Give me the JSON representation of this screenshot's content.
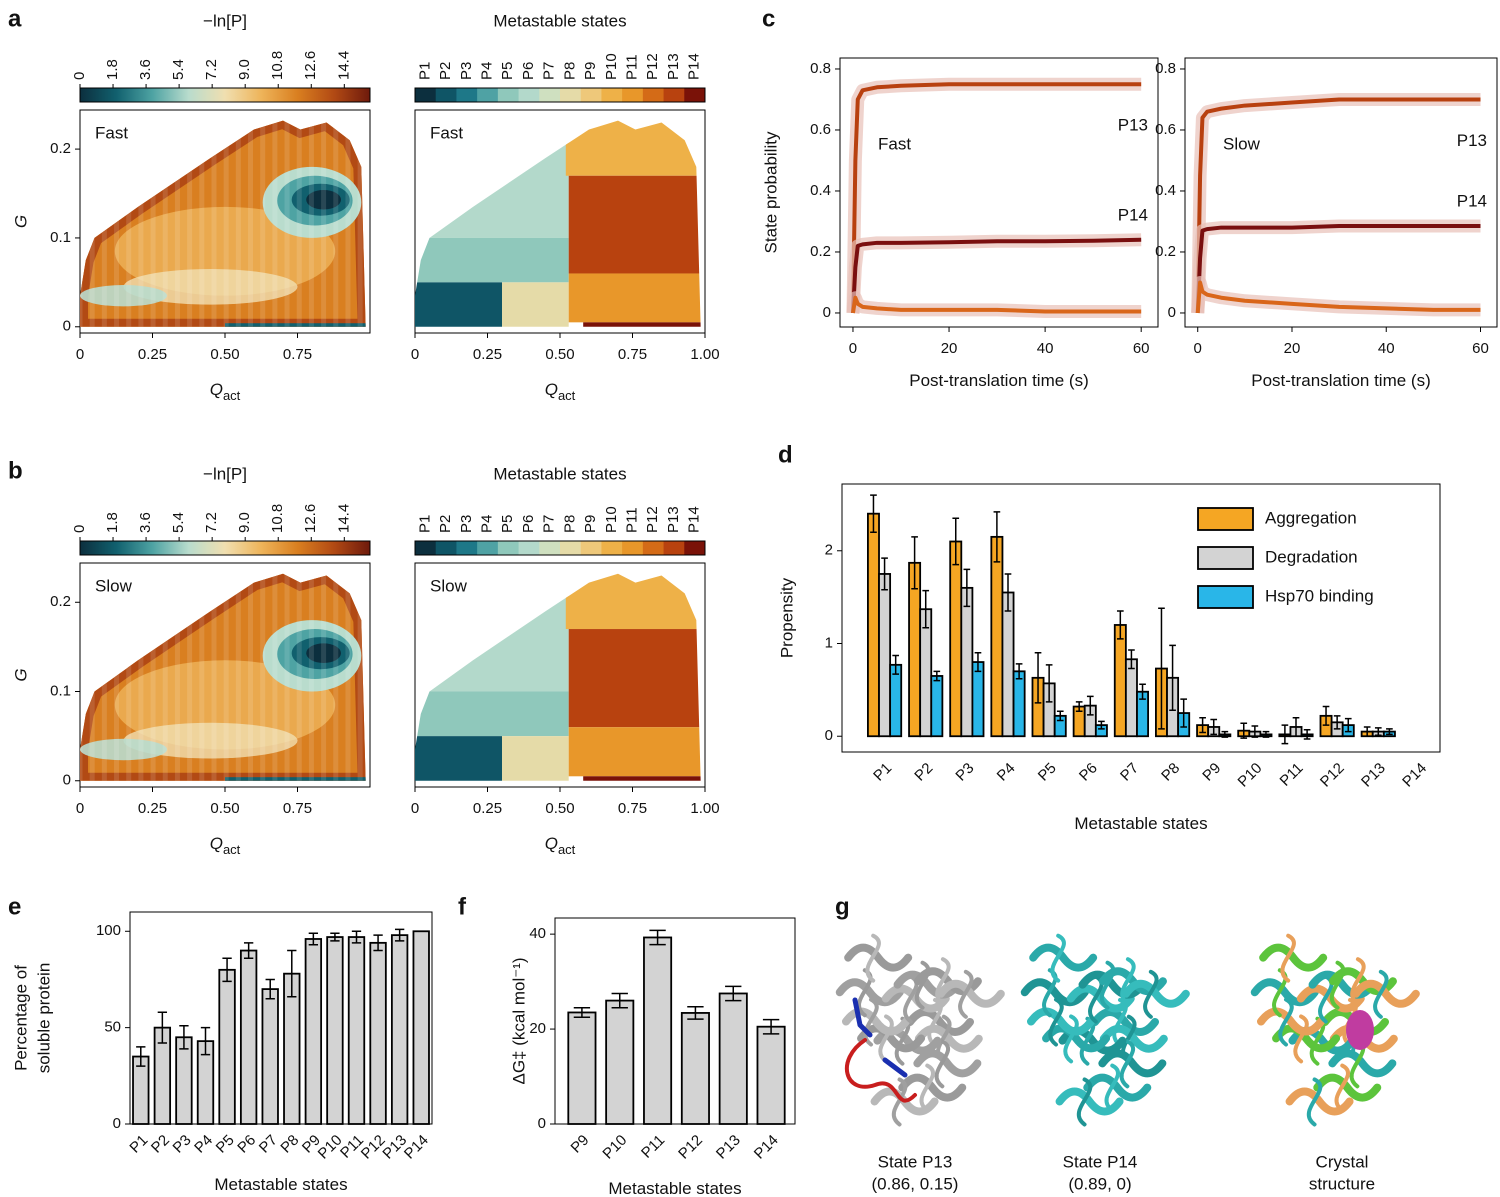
{
  "chart_data": [
    {
      "type": "heatmap",
      "panel": "a",
      "title": "−ln[P]",
      "colorbar_lim": [
        0,
        15.8
      ],
      "colorbar_ticks": [
        0,
        1.8,
        3.6,
        5.4,
        7.2,
        {
          "value": 9,
          "label": "9.0"
        },
        10.8,
        12.6,
        14.4
      ],
      "colormap": [
        "#0c2f3e",
        "#11606e",
        "#4ea3a3",
        "#b9dccd",
        "#f0dfb0",
        "#eeb45a",
        "#d97f20",
        "#b24a14",
        "#6e1a0c"
      ],
      "annotation": "Fast",
      "xlim": [
        0,
        1
      ],
      "xticks": [
        0,
        0.25,
        {
          "value": 0.5,
          "label": "0.50"
        },
        0.75
      ],
      "ylim": [
        -0.007,
        0.244
      ],
      "yticks": [
        0,
        0.1,
        0.2
      ],
      "xlabel": "Q",
      "xlabel_sub": "act",
      "ylabel": "G"
    },
    {
      "type": "statemap",
      "title": "Metastable states",
      "states": [
        "P1",
        "P2",
        "P3",
        "P4",
        "P5",
        "P6",
        "P7",
        "P8",
        "P9",
        "P10",
        "P11",
        "P12",
        "P13",
        "P14"
      ],
      "state_colors": [
        "#0c2f3e",
        "#0f5566",
        "#1e7888",
        "#4fa2a4",
        "#8fc8bb",
        "#b3d9cb",
        "#cfe0c0",
        "#e5dba8",
        "#eec87a",
        "#eeb148",
        "#e8972a",
        "#d46b17",
        "#b8420f",
        "#7a1208"
      ],
      "label_colors": [
        "#000000",
        "#000000",
        "#000000",
        "#000000",
        "#000000",
        "#000000",
        "#000000",
        "#000000",
        "#000000",
        "#000000",
        "#000000",
        "#000000",
        "#e02020",
        "#1e8c45"
      ],
      "annotation": "Fast",
      "xlim": [
        0,
        1
      ],
      "ylim": [
        -0.007,
        0.244
      ],
      "xticks": [
        0,
        0.25,
        {
          "value": 0.5,
          "label": "0.50"
        },
        0.75,
        {
          "value": 1,
          "label": "1.00"
        }
      ],
      "xlabel": "Q",
      "xlabel_sub": "act"
    },
    {
      "type": "heatmap",
      "panel": "b",
      "title": "−ln[P]",
      "colorbar_lim": [
        0,
        15.8
      ],
      "colorbar_ticks": [
        0,
        1.8,
        3.6,
        5.4,
        7.2,
        {
          "value": 9,
          "label": "9.0"
        },
        10.8,
        12.6,
        14.4
      ],
      "colormap": [
        "#0c2f3e",
        "#11606e",
        "#4ea3a3",
        "#b9dccd",
        "#f0dfb0",
        "#eeb45a",
        "#d97f20",
        "#b24a14",
        "#6e1a0c"
      ],
      "annotation": "Slow",
      "xlim": [
        0,
        1
      ],
      "xticks": [
        0,
        0.25,
        {
          "value": 0.5,
          "label": "0.50"
        },
        0.75
      ],
      "ylim": [
        -0.007,
        0.244
      ],
      "yticks": [
        0,
        0.1,
        0.2
      ],
      "xlabel": "Q",
      "xlabel_sub": "act",
      "ylabel": "G"
    },
    {
      "type": "statemap",
      "title": "Metastable states",
      "states": [
        "P1",
        "P2",
        "P3",
        "P4",
        "P5",
        "P6",
        "P7",
        "P8",
        "P9",
        "P10",
        "P11",
        "P12",
        "P13",
        "P14"
      ],
      "state_colors": [
        "#0c2f3e",
        "#0f5566",
        "#1e7888",
        "#4fa2a4",
        "#8fc8bb",
        "#b3d9cb",
        "#cfe0c0",
        "#e5dba8",
        "#eec87a",
        "#eeb148",
        "#e8972a",
        "#d46b17",
        "#b8420f",
        "#7a1208"
      ],
      "label_colors": [
        "#000000",
        "#000000",
        "#000000",
        "#000000",
        "#000000",
        "#000000",
        "#000000",
        "#000000",
        "#000000",
        "#000000",
        "#000000",
        "#000000",
        "#e02020",
        "#1e8c45"
      ],
      "annotation": "Slow",
      "xlim": [
        0,
        1
      ],
      "ylim": [
        -0.007,
        0.244
      ],
      "xticks": [
        0,
        0.25,
        {
          "value": 0.5,
          "label": "0.50"
        },
        0.75,
        {
          "value": 1,
          "label": "1.00"
        }
      ],
      "xlabel": "Q",
      "xlabel_sub": "act"
    },
    {
      "type": "line",
      "panel": "c",
      "annotation": "Fast",
      "x": [
        0,
        0.5,
        1,
        2,
        5,
        10,
        20,
        30,
        40,
        50,
        60
      ],
      "series": [
        {
          "name": "P13",
          "color": "#b8400f",
          "label_color": "#e02020",
          "values": [
            0,
            0.5,
            0.7,
            0.73,
            0.74,
            0.745,
            0.75,
            0.75,
            0.75,
            0.75,
            0.75
          ]
        },
        {
          "name": "P14",
          "color": "#7a0f0f",
          "label_color": "#1e8c45",
          "values": [
            0,
            0.15,
            0.22,
            0.225,
            0.23,
            0.23,
            0.232,
            0.235,
            0.235,
            0.237,
            0.24
          ]
        },
        {
          "color": "#d9661a",
          "values": [
            0,
            0.05,
            0.03,
            0.02,
            0.015,
            0.01,
            0.01,
            0.01,
            0.005,
            0.005,
            0.005
          ]
        }
      ],
      "band_color": "#e8c0b8",
      "xlim": [
        -2.7,
        63.5
      ],
      "ylim": [
        -0.046,
        0.836
      ],
      "xticks": [
        0,
        20,
        40,
        60
      ],
      "yticks": [
        0,
        0.2,
        0.4,
        0.6,
        0.8
      ],
      "xlabel": "Post-translation time (s)",
      "ylabel": "State probability"
    },
    {
      "type": "line",
      "annotation": "Slow",
      "x": [
        0,
        0.5,
        1,
        2,
        5,
        10,
        20,
        30,
        40,
        50,
        60
      ],
      "series": [
        {
          "name": "P13",
          "color": "#b8400f",
          "label_color": "#e02020",
          "values": [
            0,
            0.45,
            0.64,
            0.66,
            0.67,
            0.68,
            0.69,
            0.7,
            0.7,
            0.7,
            0.7
          ]
        },
        {
          "name": "P14",
          "color": "#7a0f0f",
          "label_color": "#1e8c45",
          "values": [
            0,
            0.18,
            0.27,
            0.275,
            0.28,
            0.28,
            0.28,
            0.285,
            0.285,
            0.285,
            0.285
          ]
        },
        {
          "color": "#d9661a",
          "values": [
            0,
            0.1,
            0.07,
            0.06,
            0.05,
            0.04,
            0.03,
            0.02,
            0.015,
            0.01,
            0.01
          ]
        }
      ],
      "band_color": "#e8c0b8",
      "xlim": [
        -2.7,
        63.5
      ],
      "ylim": [
        -0.046,
        0.836
      ],
      "xticks": [
        0,
        20,
        40,
        60
      ],
      "yticks": [
        0,
        0.2,
        0.4,
        0.6,
        0.8
      ],
      "xlabel": "Post-translation time (s)"
    },
    {
      "type": "bar",
      "panel": "d",
      "categories": [
        "P1",
        "P2",
        "P3",
        "P4",
        "P5",
        "P6",
        "P7",
        "P8",
        "P9",
        "P10",
        "P11",
        "P12",
        "P13",
        "P14"
      ],
      "label_colors": [
        "#000000",
        "#000000",
        "#000000",
        "#000000",
        "#000000",
        "#000000",
        "#000000",
        "#000000",
        "#000000",
        "#000000",
        "#000000",
        "#000000",
        "#e02020",
        "#1e8c45"
      ],
      "series": [
        {
          "name": "Aggregation",
          "color": "#f5a623",
          "values": [
            2.4,
            1.87,
            2.1,
            2.15,
            0.63,
            0.32,
            1.2,
            0.73,
            0.12,
            0.06,
            0.02,
            0.22,
            0.05,
            0
          ],
          "errors": [
            0.2,
            0.28,
            0.25,
            0.27,
            0.27,
            0.05,
            0.15,
            0.65,
            0.08,
            0.08,
            0.1,
            0.1,
            0.05,
            0
          ]
        },
        {
          "name": "Degradation",
          "color": "#d3d3d3",
          "values": [
            1.75,
            1.37,
            1.6,
            1.55,
            0.57,
            0.33,
            0.83,
            0.63,
            0.1,
            0.05,
            0.1,
            0.15,
            0.05,
            0
          ],
          "errors": [
            0.17,
            0.2,
            0.2,
            0.2,
            0.2,
            0.1,
            0.1,
            0.35,
            0.08,
            0.06,
            0.1,
            0.07,
            0.04,
            0
          ]
        },
        {
          "name": "Hsp70 binding",
          "color": "#29b6e8",
          "values": [
            0.77,
            0.65,
            0.8,
            0.7,
            0.22,
            0.12,
            0.48,
            0.25,
            0.02,
            0.02,
            0.02,
            0.12,
            0.05,
            0
          ],
          "errors": [
            0.1,
            0.05,
            0.1,
            0.08,
            0.05,
            0.04,
            0.08,
            0.15,
            0.03,
            0.03,
            0.05,
            0.07,
            0.03,
            0
          ]
        }
      ],
      "ylim": [
        -0.17,
        2.72
      ],
      "yticks": [
        0,
        1,
        2
      ],
      "xlabel": "Metastable states",
      "ylabel": "Propensity",
      "legend": "top-right"
    },
    {
      "type": "bar",
      "panel": "e",
      "categories": [
        "P1",
        "P2",
        "P3",
        "P4",
        "P5",
        "P6",
        "P7",
        "P8",
        "P9",
        "P10",
        "P11",
        "P12",
        "P13",
        "P14"
      ],
      "label_colors": [
        "#000000",
        "#000000",
        "#000000",
        "#000000",
        "#000000",
        "#000000",
        "#000000",
        "#000000",
        "#000000",
        "#000000",
        "#000000",
        "#000000",
        "#e02020",
        "#1e8c45"
      ],
      "color": "#d3d3d3",
      "values": [
        35,
        50,
        45,
        43,
        80,
        90,
        70,
        78,
        96,
        97,
        97,
        94,
        98,
        100
      ],
      "errors": [
        5,
        8,
        6,
        7,
        6,
        4,
        5,
        12,
        3,
        2,
        3,
        4,
        3,
        0
      ],
      "ylim": [
        0,
        110
      ],
      "yticks": [
        0,
        50,
        100
      ],
      "xlabel": "Metastable states",
      "ylabel": [
        "Percentage of",
        "soluble protein"
      ]
    },
    {
      "type": "bar",
      "panel": "f",
      "categories": [
        "P9",
        "P10",
        "P11",
        "P12",
        "P13",
        "P14"
      ],
      "label_colors": [
        "#000000",
        "#000000",
        "#000000",
        "#000000",
        "#e02020",
        "#1e8c45"
      ],
      "color": "#d3d3d3",
      "values": [
        23.5,
        26,
        39.3,
        23.4,
        27.5,
        20.5
      ],
      "errors": [
        1,
        1.5,
        1.5,
        1.3,
        1.5,
        1.5
      ],
      "ylim": [
        0,
        43.4
      ],
      "yticks": [
        0,
        20,
        40
      ],
      "xlabel": "Metastable states",
      "ylabel": "ΔG‡ (kcal mol⁻¹)"
    }
  ],
  "panel_g": {
    "panel": "g",
    "structures": [
      {
        "lines": [
          "State P13",
          "(0.86, 0.15)"
        ],
        "title_color": "#e02020"
      },
      {
        "lines": [
          "State P14",
          "(0.89, 0)"
        ],
        "title_color": "#1e8c45"
      },
      {
        "lines": [
          "Crystal",
          "structure"
        ],
        "title_color": "#000000"
      }
    ]
  }
}
